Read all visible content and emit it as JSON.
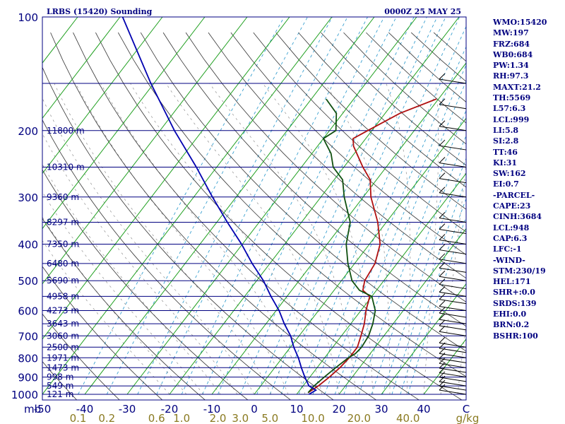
{
  "header": {
    "title": "LRBS (15420) Sounding",
    "datetime": "0000Z 25 MAY 25"
  },
  "colors": {
    "frame": "#000080",
    "isobar": "#000080",
    "isotherm": "#20a020",
    "dry_adiabat": "#333333",
    "moist_adiabat": "#6a6a6a",
    "mixing_ratio": "#3aa0d0",
    "temperature": "#b01010",
    "dewpoint": "#105010",
    "parcel": "#0000b0",
    "mixing_label": "#8a7a20"
  },
  "indices": [
    "WMO:15420",
    "MW:197",
    "FRZ:684",
    "WB0:684",
    "PW:1.34",
    "RH:97.3",
    "MAXT:21.2",
    "TH:5569",
    "L57:6.3",
    "LCL:999",
    "LI:5.8",
    "SI:2.8",
    "TT:46",
    "KI:31",
    "SW:162",
    "EI:0.7",
    "-PARCEL-",
    "CAPE:23",
    "CINH:3684",
    "LCL:948",
    "CAP:6.3",
    "LFC:-1",
    "-WIND-",
    "STM:230/19",
    "HEL:171",
    "SHR+:0.0",
    "SRDS:139",
    "EHI:0.0",
    "BRN:0.2",
    "BSHR:100"
  ],
  "chart_data": {
    "type": "line",
    "title": "LRBS (15420) Sounding",
    "subtitle": "0000Z 25 MAY 25",
    "xlabel": "",
    "ylabel": "mb",
    "pressure_axis": {
      "scale": "log",
      "range": [
        1000,
        100
      ],
      "ticks": [
        100,
        200,
        300,
        400,
        500,
        600,
        700,
        800,
        900,
        1000
      ]
    },
    "temperature_axis": {
      "range": [
        -50,
        50
      ],
      "ticks": [
        "-50",
        "-40",
        "-30",
        "-20",
        "-10",
        "0",
        "10",
        "20",
        "30",
        "40",
        "C"
      ]
    },
    "mixing_ratio_labels": [
      "0.1",
      "0.2",
      "0.6",
      "1.0",
      "2.0",
      "3.0",
      "5.0",
      "10.0",
      "20.0",
      "40.0",
      "g/kg"
    ],
    "height_labels": [
      {
        "p": 1000,
        "text": "121 m"
      },
      {
        "p": 950,
        "text": "549 m"
      },
      {
        "p": 900,
        "text": "998 m"
      },
      {
        "p": 850,
        "text": "1473 m"
      },
      {
        "p": 800,
        "text": "1971 m"
      },
      {
        "p": 750,
        "text": "2500 m"
      },
      {
        "p": 700,
        "text": "3060 m"
      },
      {
        "p": 650,
        "text": "3643 m"
      },
      {
        "p": 600,
        "text": "4273 m"
      },
      {
        "p": 550,
        "text": "4958 m"
      },
      {
        "p": 500,
        "text": "5690 m"
      },
      {
        "p": 450,
        "text": "6480 m"
      },
      {
        "p": 400,
        "text": "7350 m"
      },
      {
        "p": 350,
        "text": "8297 m"
      },
      {
        "p": 300,
        "text": "9360 m"
      },
      {
        "p": 250,
        "text": "10310 m"
      },
      {
        "p": 200,
        "text": "11800 m"
      }
    ],
    "series": [
      {
        "key": "temperature",
        "points": [
          [
            990,
            12.4
          ],
          [
            950,
            13.6
          ],
          [
            900,
            14.6
          ],
          [
            850,
            15.4
          ],
          [
            800,
            15.8
          ],
          [
            750,
            15.8
          ],
          [
            700,
            14.6
          ],
          [
            650,
            13.2
          ],
          [
            600,
            11.2
          ],
          [
            550,
            9.5
          ],
          [
            530,
            6.8
          ],
          [
            500,
            5.5
          ],
          [
            450,
            4.8
          ],
          [
            400,
            2.5
          ],
          [
            350,
            -2.0
          ],
          [
            300,
            -8.2
          ],
          [
            270,
            -11.5
          ],
          [
            250,
            -15.5
          ],
          [
            220,
            -21.5
          ],
          [
            210,
            -23.0
          ],
          [
            200,
            -21.0
          ],
          [
            180,
            -16.5
          ],
          [
            165,
            -10.5
          ]
        ]
      },
      {
        "key": "dewpoint",
        "points": [
          [
            990,
            12.4
          ],
          [
            950,
            12.6
          ],
          [
            900,
            13.4
          ],
          [
            850,
            14.4
          ],
          [
            800,
            15.6
          ],
          [
            780,
            16.5
          ],
          [
            750,
            16.8
          ],
          [
            700,
            16.4
          ],
          [
            650,
            15.2
          ],
          [
            600,
            13.4
          ],
          [
            550,
            10.0
          ],
          [
            530,
            6.0
          ],
          [
            500,
            2.5
          ],
          [
            450,
            -1.6
          ],
          [
            400,
            -5.5
          ],
          [
            350,
            -8.5
          ],
          [
            300,
            -14.5
          ],
          [
            270,
            -18.0
          ],
          [
            250,
            -22.5
          ],
          [
            230,
            -25.5
          ],
          [
            210,
            -30.0
          ],
          [
            200,
            -28.5
          ],
          [
            180,
            -31.5
          ],
          [
            165,
            -36.5
          ]
        ]
      },
      {
        "key": "parcel",
        "points": [
          [
            1000,
            12.9
          ],
          [
            975,
            13.8
          ],
          [
            950,
            11.4
          ],
          [
            900,
            8.8
          ],
          [
            850,
            6.3
          ],
          [
            800,
            3.8
          ],
          [
            750,
            0.8
          ],
          [
            700,
            -2.0
          ],
          [
            650,
            -5.7
          ],
          [
            600,
            -9.3
          ],
          [
            550,
            -13.8
          ],
          [
            500,
            -18.4
          ],
          [
            450,
            -24.2
          ],
          [
            400,
            -30.2
          ],
          [
            350,
            -37.5
          ],
          [
            300,
            -45.6
          ],
          [
            250,
            -54.8
          ],
          [
            200,
            -66.6
          ],
          [
            150,
            -80.7
          ],
          [
            100,
            -99.4
          ]
        ]
      }
    ],
    "wind_barbs": [
      {
        "p": 1000
      },
      {
        "p": 975
      },
      {
        "p": 950
      },
      {
        "p": 925
      },
      {
        "p": 900
      },
      {
        "p": 875
      },
      {
        "p": 850
      },
      {
        "p": 825
      },
      {
        "p": 800
      },
      {
        "p": 775
      },
      {
        "p": 750
      },
      {
        "p": 700
      },
      {
        "p": 675
      },
      {
        "p": 650
      },
      {
        "p": 625
      },
      {
        "p": 600
      },
      {
        "p": 575
      },
      {
        "p": 550
      },
      {
        "p": 525
      },
      {
        "p": 500
      },
      {
        "p": 475
      },
      {
        "p": 450
      },
      {
        "p": 425
      },
      {
        "p": 400
      },
      {
        "p": 375
      },
      {
        "p": 350
      },
      {
        "p": 300
      },
      {
        "p": 275
      },
      {
        "p": 250
      },
      {
        "p": 225
      },
      {
        "p": 200
      },
      {
        "p": 175
      },
      {
        "p": 150
      }
    ]
  }
}
